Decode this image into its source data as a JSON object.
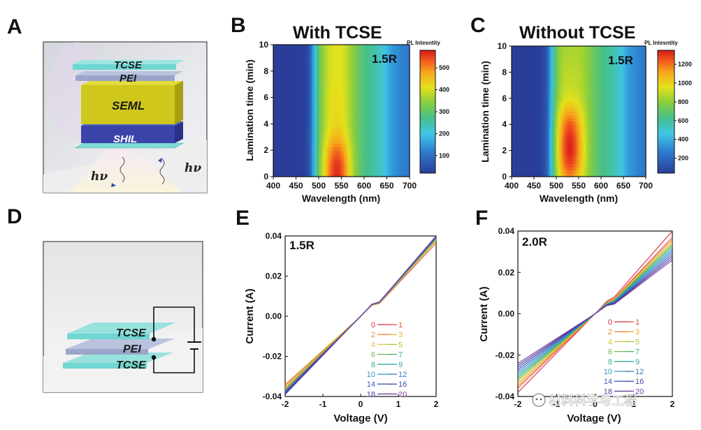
{
  "panels": {
    "a": "A",
    "b": "B",
    "c": "C",
    "d": "D",
    "e": "E",
    "f": "F"
  },
  "schematic_a": {
    "layers": [
      "TCSE",
      "PEI",
      "SEML",
      "SHIL"
    ],
    "emission": "hν",
    "colors": {
      "tcse": "#6fd6d2",
      "pei": "#9aa5c9",
      "seml": "#cfc71c",
      "shil": "#3a44a8"
    }
  },
  "schematic_d": {
    "layers": [
      "TCSE",
      "PEI",
      "TCSE"
    ]
  },
  "heatmaps": [
    {
      "title": "With TCSE",
      "inset": "1.5R",
      "xlabel": "Wavelength (nm)",
      "ylabel": "Lamination time (min)",
      "xticks": [
        "400",
        "450",
        "500",
        "550",
        "600",
        "650",
        "700"
      ],
      "yticks": [
        "0",
        "2",
        "4",
        "6",
        "8",
        "10"
      ],
      "colorbar_title": "PL Intesntity",
      "colorbar_ticks": [
        "100",
        "200",
        "300",
        "400",
        "500"
      ]
    },
    {
      "title": "Without TCSE",
      "inset": "1.5R",
      "xlabel": "Wavelength (nm)",
      "ylabel": "Lamination time (min)",
      "xticks": [
        "400",
        "450",
        "500",
        "550",
        "600",
        "650",
        "700"
      ],
      "yticks": [
        "0",
        "2",
        "4",
        "6",
        "8",
        "10"
      ],
      "colorbar_title": "PL Intesntity",
      "colorbar_ticks": [
        "200",
        "400",
        "600",
        "800",
        "1000",
        "1200"
      ]
    }
  ],
  "iv_plots": [
    {
      "inset": "1.5R",
      "xlabel": "Voltage (V)",
      "ylabel": "Current (A)",
      "xticks": [
        "-2",
        "-1",
        "0",
        "1",
        "2"
      ],
      "yticks": [
        "-0.04",
        "-0.02",
        "0.00",
        "0.02",
        "0.04"
      ],
      "legend": [
        "0",
        "1",
        "2",
        "3",
        "4",
        "5",
        "6",
        "7",
        "8",
        "9",
        "10",
        "12",
        "14",
        "16",
        "18",
        "20"
      ]
    },
    {
      "inset": "2.0R",
      "xlabel": "Voltage (V)",
      "ylabel": "Current (A)",
      "xticks": [
        "-2",
        "-1",
        "0",
        "1",
        "2"
      ],
      "yticks": [
        "-0.04",
        "-0.02",
        "0.00",
        "0.02",
        "0.04"
      ],
      "legend": [
        "0",
        "1",
        "2",
        "3",
        "4",
        "5",
        "6",
        "7",
        "8",
        "9",
        "10",
        "12",
        "14",
        "16",
        "18",
        "20"
      ]
    }
  ],
  "watermark": "材料科学与工程",
  "legend_colors": [
    "#d62745",
    "#e0533a",
    "#ec8a35",
    "#eeb02f",
    "#d9c63a",
    "#a7c438",
    "#6fba48",
    "#43b06a",
    "#2fae93",
    "#2fa6b6",
    "#3a93c6",
    "#3f79c0",
    "#3f5fb2",
    "#3f47a3",
    "#55399c",
    "#7a3ba0"
  ],
  "chart_data": [
    {
      "type": "heatmap",
      "title": "With TCSE",
      "xlabel": "Wavelength (nm)",
      "ylabel": "Lamination time (min)",
      "xlim": [
        400,
        700
      ],
      "ylim": [
        0,
        10
      ],
      "colorbar_range": [
        20,
        580
      ],
      "peak": {
        "wavelength_nm": 540,
        "lamination_min": 0.6,
        "intensity": 580
      },
      "profile_wavelength_nm": [
        400,
        450,
        470,
        480,
        490,
        500,
        510,
        520,
        530,
        540,
        550,
        560,
        570,
        580,
        590,
        600,
        620,
        640,
        650,
        660,
        680,
        700
      ],
      "profile_relative": [
        0.03,
        0.03,
        0.05,
        0.12,
        0.38,
        0.6,
        0.7,
        0.75,
        0.78,
        0.8,
        0.79,
        0.76,
        0.72,
        0.68,
        0.64,
        0.6,
        0.55,
        0.47,
        0.4,
        0.33,
        0.27,
        0.24
      ],
      "hotspot_rows_min": [
        0,
        1,
        2,
        3,
        4,
        5,
        6,
        7,
        8,
        9,
        10
      ],
      "hotspot_peak_intensity": [
        570,
        560,
        520,
        460,
        430,
        420,
        420,
        415,
        410,
        410,
        410
      ]
    },
    {
      "type": "heatmap",
      "title": "Without TCSE",
      "xlabel": "Wavelength (nm)",
      "ylabel": "Lamination time (min)",
      "xlim": [
        400,
        700
      ],
      "ylim": [
        0,
        10
      ],
      "colorbar_range": [
        40,
        1350
      ],
      "peak": {
        "wavelength_nm": 530,
        "lamination_min": 2.2,
        "intensity": 1340
      },
      "profile_wavelength_nm": [
        400,
        450,
        470,
        480,
        490,
        500,
        510,
        520,
        530,
        540,
        550,
        560,
        570,
        580,
        590,
        600,
        620,
        640,
        650,
        660,
        680,
        700
      ],
      "profile_relative": [
        0.03,
        0.03,
        0.05,
        0.12,
        0.38,
        0.6,
        0.7,
        0.75,
        0.78,
        0.8,
        0.79,
        0.76,
        0.72,
        0.68,
        0.64,
        0.6,
        0.55,
        0.47,
        0.4,
        0.33,
        0.27,
        0.24
      ],
      "hotspot_rows_min": [
        0,
        1,
        2,
        3,
        4,
        5,
        6,
        7,
        8,
        9,
        10
      ],
      "hotspot_peak_intensity": [
        1150,
        1280,
        1340,
        1320,
        1250,
        1100,
        950,
        900,
        880,
        860,
        850
      ]
    },
    {
      "type": "line",
      "title": "1.5R",
      "xlabel": "Voltage (V)",
      "ylabel": "Current (A)",
      "xlim": [
        -2,
        2
      ],
      "ylim": [
        -0.04,
        0.04
      ],
      "x": [
        -2,
        2
      ],
      "series": [
        {
          "name": "0",
          "values": [
            -0.0365,
            0.0385
          ]
        },
        {
          "name": "1",
          "values": [
            -0.0345,
            0.0365
          ]
        },
        {
          "name": "2",
          "values": [
            -0.0355,
            0.038
          ]
        },
        {
          "name": "3",
          "values": [
            -0.034,
            0.0375
          ]
        },
        {
          "name": "4",
          "values": [
            -0.0362,
            0.038
          ]
        },
        {
          "name": "5",
          "values": [
            -0.036,
            0.0382
          ]
        },
        {
          "name": "6",
          "values": [
            -0.0368,
            0.0385
          ]
        },
        {
          "name": "7",
          "values": [
            -0.037,
            0.0387
          ]
        },
        {
          "name": "8",
          "values": [
            -0.0372,
            0.0388
          ]
        },
        {
          "name": "9",
          "values": [
            -0.0375,
            0.039
          ]
        },
        {
          "name": "10",
          "values": [
            -0.0378,
            0.0392
          ]
        },
        {
          "name": "12",
          "values": [
            -0.038,
            0.0394
          ]
        },
        {
          "name": "14",
          "values": [
            -0.0383,
            0.0396
          ]
        },
        {
          "name": "16",
          "values": [
            -0.0386,
            0.0398
          ]
        },
        {
          "name": "18",
          "values": [
            -0.039,
            0.04
          ]
        },
        {
          "name": "20",
          "values": [
            -0.0375,
            0.0395
          ]
        }
      ]
    },
    {
      "type": "line",
      "title": "2.0R",
      "xlabel": "Voltage (V)",
      "ylabel": "Current (A)",
      "xlim": [
        -2,
        2
      ],
      "ylim": [
        -0.04,
        0.04
      ],
      "x": [
        -2,
        2
      ],
      "series": [
        {
          "name": "0",
          "values": [
            -0.038,
            0.04
          ]
        },
        {
          "name": "1",
          "values": [
            -0.036,
            0.037
          ]
        },
        {
          "name": "2",
          "values": [
            -0.035,
            0.036
          ]
        },
        {
          "name": "3",
          "values": [
            -0.034,
            0.035
          ]
        },
        {
          "name": "4",
          "values": [
            -0.033,
            0.034
          ]
        },
        {
          "name": "5",
          "values": [
            -0.032,
            0.034
          ]
        },
        {
          "name": "6",
          "values": [
            -0.032,
            0.033
          ]
        },
        {
          "name": "7",
          "values": [
            -0.031,
            0.033
          ]
        },
        {
          "name": "8",
          "values": [
            -0.03,
            0.032
          ]
        },
        {
          "name": "9",
          "values": [
            -0.03,
            0.031
          ]
        },
        {
          "name": "10",
          "values": [
            -0.029,
            0.031
          ]
        },
        {
          "name": "12",
          "values": [
            -0.028,
            0.03
          ]
        },
        {
          "name": "14",
          "values": [
            -0.027,
            0.029
          ]
        },
        {
          "name": "16",
          "values": [
            -0.026,
            0.028
          ]
        },
        {
          "name": "18",
          "values": [
            -0.025,
            0.027
          ]
        },
        {
          "name": "20",
          "values": [
            -0.024,
            0.026
          ]
        }
      ]
    }
  ]
}
